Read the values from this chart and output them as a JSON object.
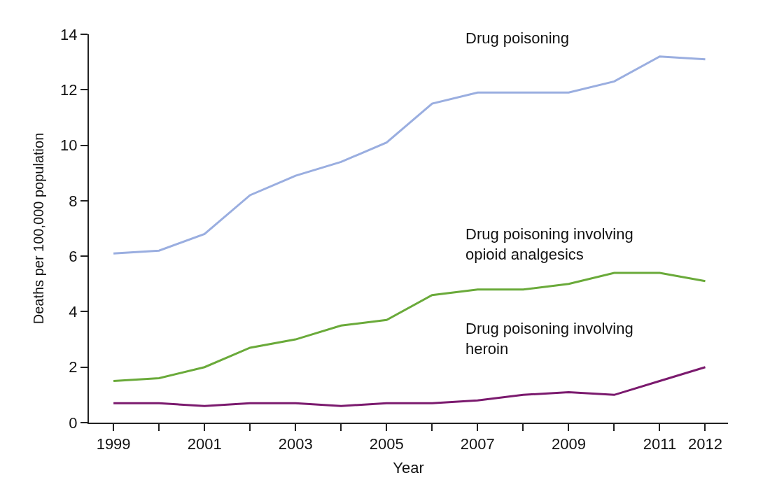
{
  "chart_data": {
    "type": "line",
    "xlabel": "Year",
    "ylabel": "Deaths per 100,000 population",
    "x": [
      1999,
      2000,
      2001,
      2002,
      2003,
      2004,
      2005,
      2006,
      2007,
      2008,
      2009,
      2010,
      2011,
      2012
    ],
    "series": [
      {
        "name": "Drug poisoning",
        "color": "#9aaee0",
        "values": [
          6.1,
          6.2,
          6.8,
          8.2,
          8.9,
          9.4,
          10.1,
          11.5,
          11.9,
          11.9,
          11.9,
          12.3,
          13.2,
          13.1
        ]
      },
      {
        "name": "Drug poisoning involving opioid analgesics",
        "color": "#6aaa3a",
        "values": [
          1.5,
          1.6,
          2.0,
          2.7,
          3.0,
          3.5,
          3.7,
          4.6,
          4.8,
          4.8,
          5.0,
          5.4,
          5.4,
          5.1
        ]
      },
      {
        "name": "Drug poisoning involving heroin",
        "color": "#7b1a6e",
        "values": [
          0.7,
          0.7,
          0.6,
          0.7,
          0.7,
          0.6,
          0.7,
          0.7,
          0.8,
          1.0,
          1.1,
          1.0,
          1.5,
          2.0
        ]
      }
    ],
    "xlim": [
      1998.46,
      2012.5
    ],
    "xticks": [
      1999,
      {
        "value": 2000,
        "label": null
      },
      2001,
      {
        "value": 2002,
        "label": null
      },
      2003,
      {
        "value": 2004,
        "label": null
      },
      2005,
      {
        "value": 2006,
        "label": null
      },
      2007,
      {
        "value": 2008,
        "label": null
      },
      2009,
      {
        "value": 2010,
        "label": null
      },
      2011,
      2012
    ],
    "ylim": [
      0,
      14
    ],
    "yticks": [
      0,
      2,
      4,
      6,
      8,
      10,
      12,
      14
    ],
    "grid": false,
    "legend": false,
    "marker": "none",
    "line_style": "solid"
  }
}
